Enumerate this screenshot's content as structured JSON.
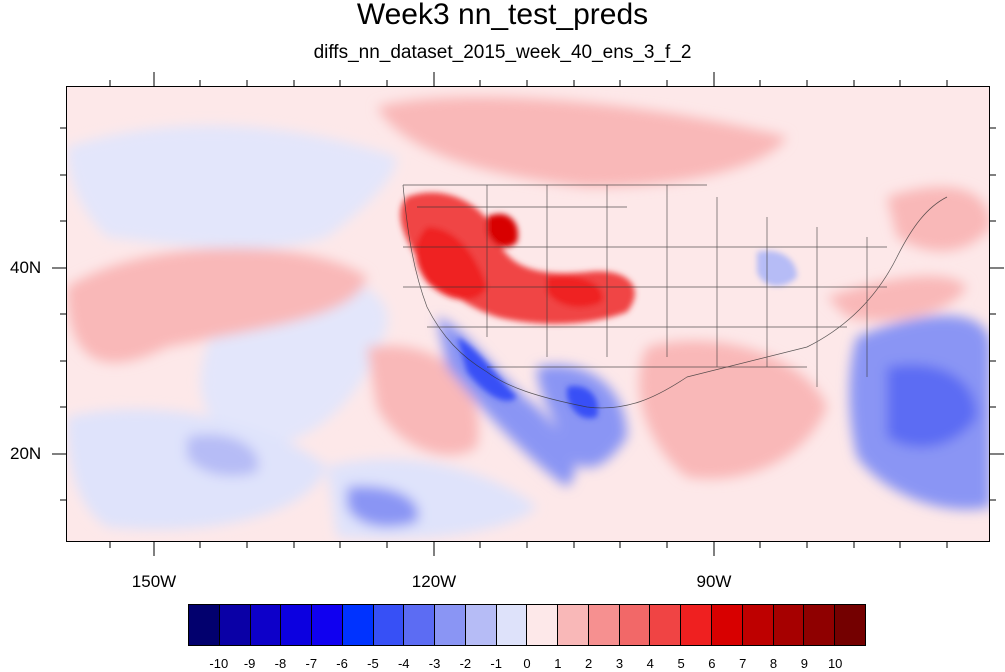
{
  "title": "Week3 nn_test_preds",
  "subtitle": "diffs_nn_dataset_2015_week_40_ens_3_f_2",
  "map": {
    "lat_labels": [
      "40N",
      "20N"
    ],
    "lon_labels": [
      "150W",
      "120W",
      "90W"
    ]
  },
  "colorbar": {
    "colors": [
      "#02006e",
      "#0a00a6",
      "#0d00c9",
      "#0c00e0",
      "#1000f0",
      "#0033ff",
      "#3750f6",
      "#5c6cf3",
      "#8a95f4",
      "#b6bcf6",
      "#dee2fa",
      "#fde8e9",
      "#f9b8b8",
      "#f69090",
      "#f26868",
      "#f04444",
      "#ef2020",
      "#d80000",
      "#be0000",
      "#a60000",
      "#8f0000",
      "#740000"
    ],
    "labels": [
      "-10",
      "-9",
      "-8",
      "-7",
      "-6",
      "-5",
      "-4",
      "-3",
      "-2",
      "-1",
      "0",
      "1",
      "2",
      "3",
      "4",
      "5",
      "6",
      "7",
      "8",
      "9",
      "10"
    ]
  }
}
